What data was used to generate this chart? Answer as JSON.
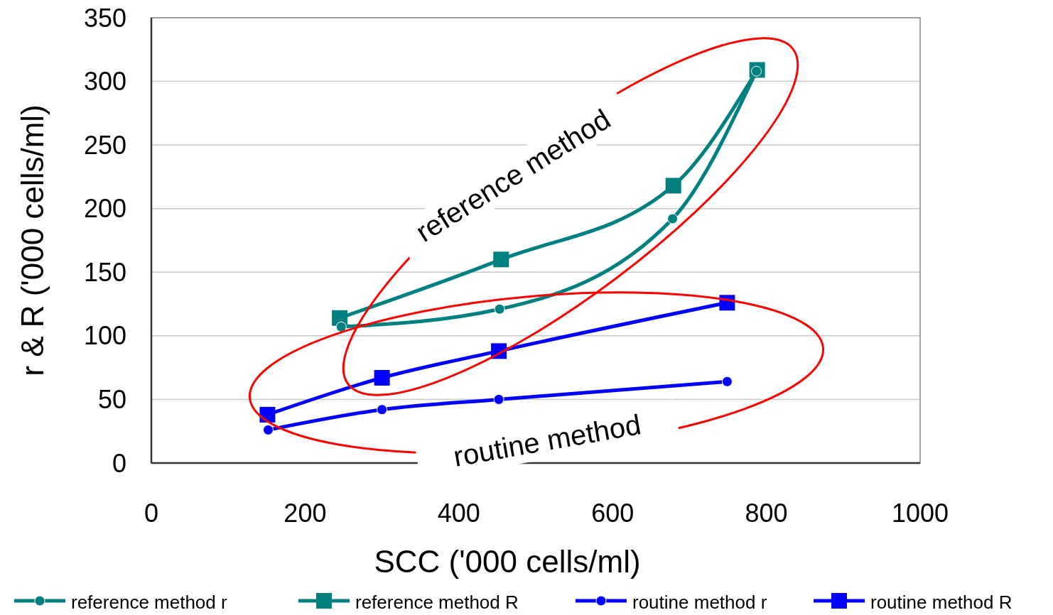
{
  "chart_data": {
    "type": "line",
    "xlabel": "SCC ('000 cells/ml)",
    "ylabel": "r & R ('000 cells/ml)",
    "xlim": [
      0,
      1000
    ],
    "xticks": [
      0,
      200,
      400,
      600,
      800,
      1000
    ],
    "ylim": [
      0,
      350
    ],
    "yticks": [
      0,
      50,
      100,
      150,
      200,
      250,
      300,
      350
    ],
    "grid": "y",
    "legend": "bottom",
    "annotations": [
      "reference method",
      "routine method"
    ],
    "series": [
      {
        "name": "reference method r",
        "color": "#008080",
        "marker": "circle",
        "x": [
          247,
          453,
          678,
          787
        ],
        "values": [
          107,
          121,
          192,
          308
        ]
      },
      {
        "name": "reference method R",
        "color": "#008080",
        "marker": "square",
        "x": [
          245,
          455,
          679,
          788
        ],
        "values": [
          114,
          160,
          218,
          309
        ]
      },
      {
        "name": "routine method r",
        "color": "#0000ff",
        "marker": "circle",
        "x": [
          152,
          300,
          452,
          749
        ],
        "values": [
          26,
          42,
          50,
          64
        ]
      },
      {
        "name": "routine method R",
        "color": "#0000ff",
        "marker": "square",
        "x": [
          151,
          300,
          452,
          749
        ],
        "values": [
          38,
          67,
          88,
          126
        ]
      }
    ]
  }
}
